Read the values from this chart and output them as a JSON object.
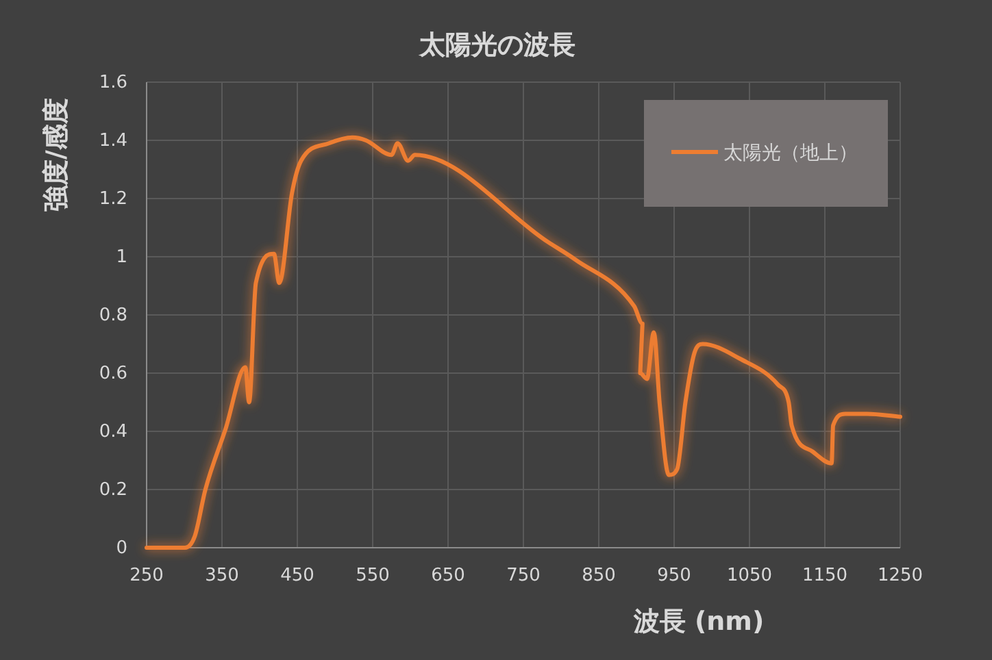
{
  "chart_data": {
    "type": "line",
    "title": "太陽光の波長",
    "xlabel": "波長 (nm)",
    "ylabel": "強度/感度",
    "x": [
      250,
      301,
      314,
      328,
      355,
      381,
      386,
      395,
      419,
      426,
      443,
      455,
      492,
      523,
      541,
      575,
      583,
      597,
      606,
      783,
      819,
      897,
      908,
      905,
      914,
      923,
      931,
      943,
      954,
      965,
      977,
      988,
      1037,
      1088,
      1102,
      1106,
      1134,
      1159,
      1161,
      1177,
      1206,
      1250
    ],
    "series": [
      {
        "name": "太陽光（地上）",
        "color": "#ed7d31",
        "values": [
          0,
          0,
          0.04,
          0.2,
          0.41,
          0.62,
          0.5,
          0.91,
          1.01,
          0.91,
          1.22,
          1.33,
          1.39,
          1.41,
          1.4,
          1.35,
          1.39,
          1.33,
          1.35,
          1.05,
          0.99,
          0.83,
          0.77,
          0.6,
          0.58,
          0.74,
          0.49,
          0.25,
          0.27,
          0.5,
          0.67,
          0.7,
          0.65,
          0.56,
          0.5,
          0.42,
          0.33,
          0.29,
          0.42,
          0.46,
          0.46,
          0.45
        ]
      }
    ],
    "xlim": [
      250,
      1250
    ],
    "xticks": [
      250,
      350,
      450,
      550,
      650,
      750,
      850,
      950,
      1050,
      1150,
      1250
    ],
    "ylim": [
      0,
      1.6
    ],
    "yticks": [
      0,
      0.2,
      0.4,
      0.6,
      0.8,
      1,
      1.2,
      1.4,
      1.6
    ],
    "grid": true,
    "legend": "top right"
  }
}
